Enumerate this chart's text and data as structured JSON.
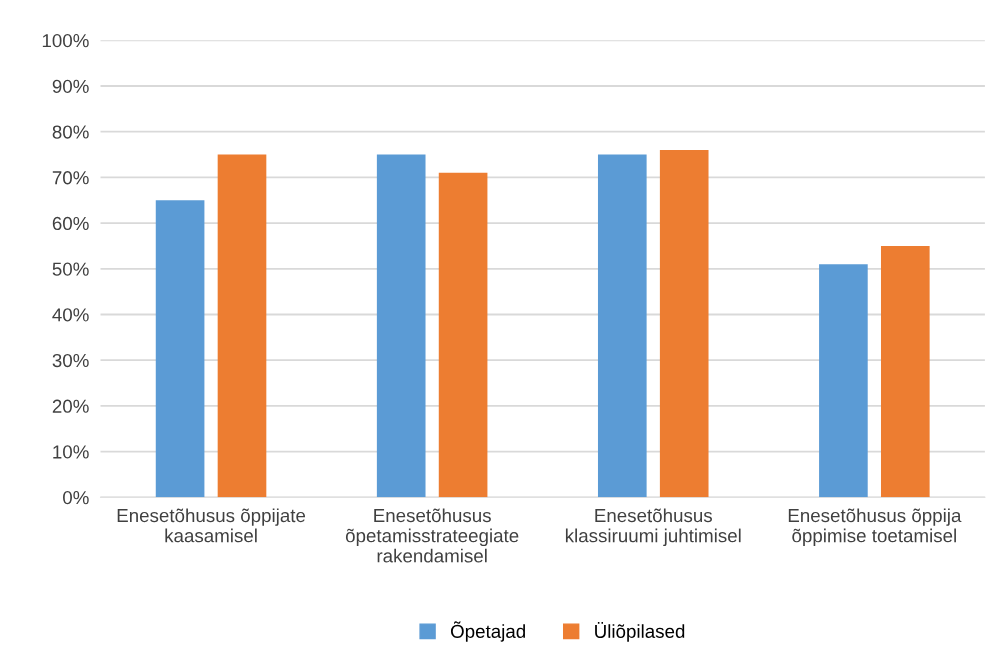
{
  "chart_data": {
    "type": "bar",
    "categories": [
      "Enesetõhusus õppijate\nkaasamisel",
      "Enesetõhusus\nõpetamisstrateegiate\nrakendamisel",
      "Enesetõhusus\nklassiruumi juhtimisel",
      "Enesetõhusus õppija\nõppimise toetamisel"
    ],
    "series": [
      {
        "name": "Õpetajad",
        "color": "#5b9bd5",
        "values": [
          65,
          75,
          75,
          51
        ]
      },
      {
        "name": "Üliõpilased",
        "color": "#ed7d31",
        "values": [
          75,
          71,
          76,
          55
        ]
      }
    ],
    "ylim": [
      0,
      100
    ],
    "yticks": [
      {
        "value": 0,
        "label": "0%"
      },
      {
        "value": 10,
        "label": "10%"
      },
      {
        "value": 20,
        "label": "20%"
      },
      {
        "value": 30,
        "label": "30%"
      },
      {
        "value": 40,
        "label": "40%"
      },
      {
        "value": 50,
        "label": "50%"
      },
      {
        "value": 60,
        "label": "60%"
      },
      {
        "value": 70,
        "label": "70%"
      },
      {
        "value": 80,
        "label": "80%"
      },
      {
        "value": 90,
        "label": "90%"
      },
      {
        "value": 100,
        "label": "100%"
      }
    ],
    "grid": "y",
    "legend": "bottom"
  }
}
